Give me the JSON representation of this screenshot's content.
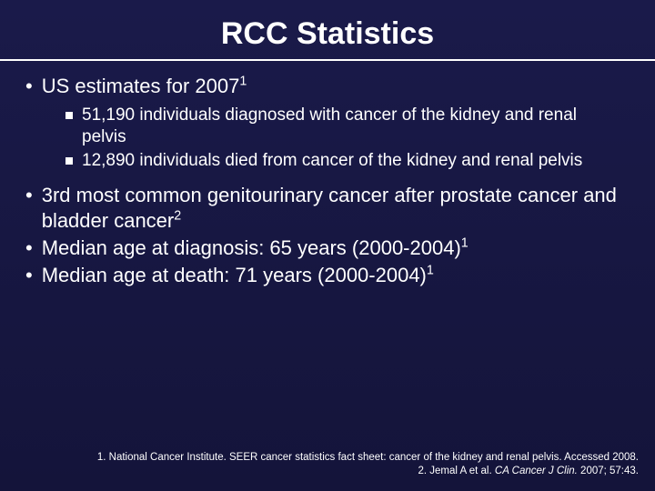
{
  "slide": {
    "title": "RCC Statistics",
    "background_gradient_top": "#1a1a4a",
    "background_gradient_bottom": "#14143a",
    "text_color": "#ffffff",
    "title_fontsize": 34,
    "body_fontsize": 22,
    "sub_fontsize": 19,
    "ref_fontsize": 11.5,
    "bullets": [
      {
        "text": "US estimates for 2007",
        "sup": "1",
        "sub": [
          {
            "text": "51,190 individuals diagnosed with cancer of the kidney and renal pelvis"
          },
          {
            "text": "12,890 individuals died from cancer of the kidney and renal pelvis"
          }
        ]
      },
      {
        "text": "3rd most common genitourinary cancer after prostate cancer and bladder cancer",
        "sup": "2"
      },
      {
        "text": "Median age at diagnosis: 65 years (2000-2004)",
        "sup": "1"
      },
      {
        "text": "Median age at death: 71 years (2000-2004)",
        "sup": "1"
      }
    ],
    "references": {
      "line1_pre": "1. National Cancer Institute. SEER cancer statistics fact sheet: cancer of the kidney and renal pelvis. Accessed 2008.",
      "line2_pre": "2. Jemal A et al. ",
      "line2_italic": "CA Cancer J Clin. ",
      "line2_post": "2007; 57:43."
    }
  }
}
